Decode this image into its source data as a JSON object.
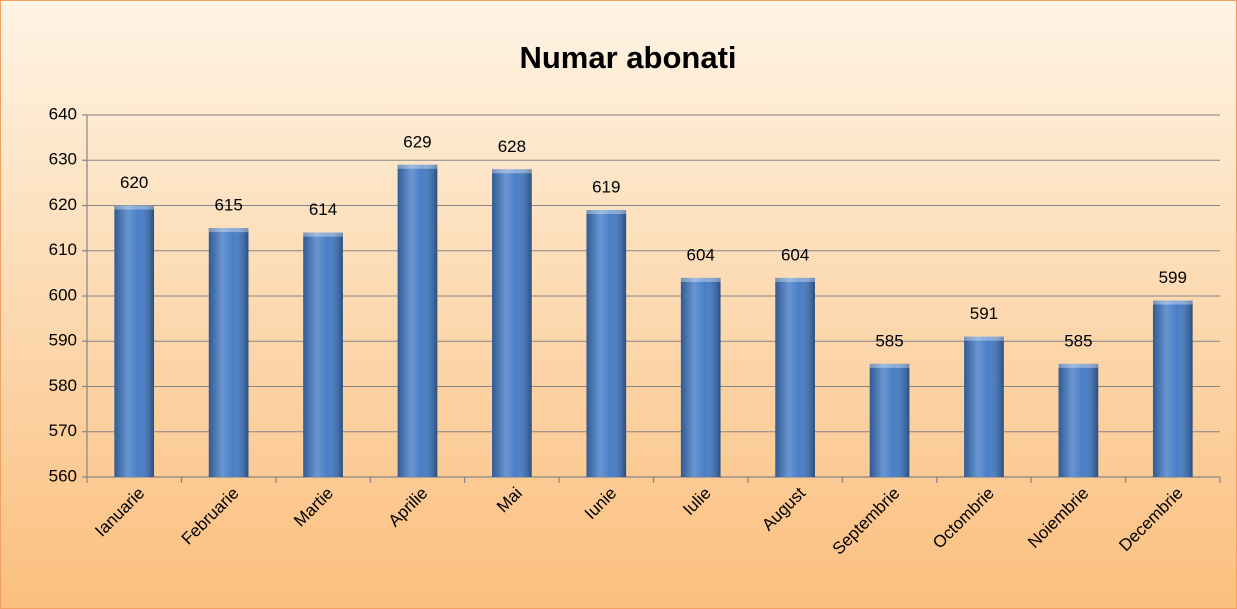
{
  "chart_data": {
    "type": "bar",
    "title": "Numar abonati",
    "categories": [
      "Ianuarie",
      "Februarie",
      "Martie",
      "Aprilie",
      "Mai",
      "Iunie",
      "Iulie",
      "August",
      "Septembrie",
      "Octombrie",
      "Noiembrie",
      "Decembrie"
    ],
    "values": [
      620,
      615,
      614,
      629,
      628,
      619,
      604,
      604,
      585,
      591,
      585,
      599
    ],
    "color": "#3f78c4",
    "ylim": [
      560,
      640
    ],
    "yticks": [
      560,
      570,
      580,
      590,
      600,
      610,
      620,
      630,
      640
    ],
    "grid": true
  }
}
